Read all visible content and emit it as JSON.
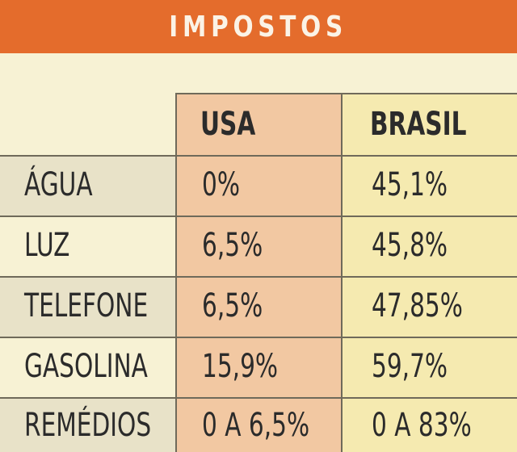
{
  "title": "IMPOSTOS",
  "columns": {
    "usa": "USA",
    "brasil": "BRASIL"
  },
  "rows": [
    {
      "label": "ÁGUA",
      "usa": "0%",
      "brasil": "45,1%"
    },
    {
      "label": "LUZ",
      "usa": "6,5%",
      "brasil": "45,8%"
    },
    {
      "label": "TELEFONE",
      "usa": "6,5%",
      "brasil": "47,85%"
    },
    {
      "label": "GASOLINA",
      "usa": "15,9%",
      "brasil": "59,7%"
    },
    {
      "label": "REMÉDIOS",
      "usa": "0 A 6,5%",
      "brasil": "0 A 83%"
    }
  ],
  "colors": {
    "banner": "#e46c2c",
    "background": "#f7f2d4",
    "usa_column": "#f2c8a2",
    "brasil_column": "#f5eab0"
  }
}
